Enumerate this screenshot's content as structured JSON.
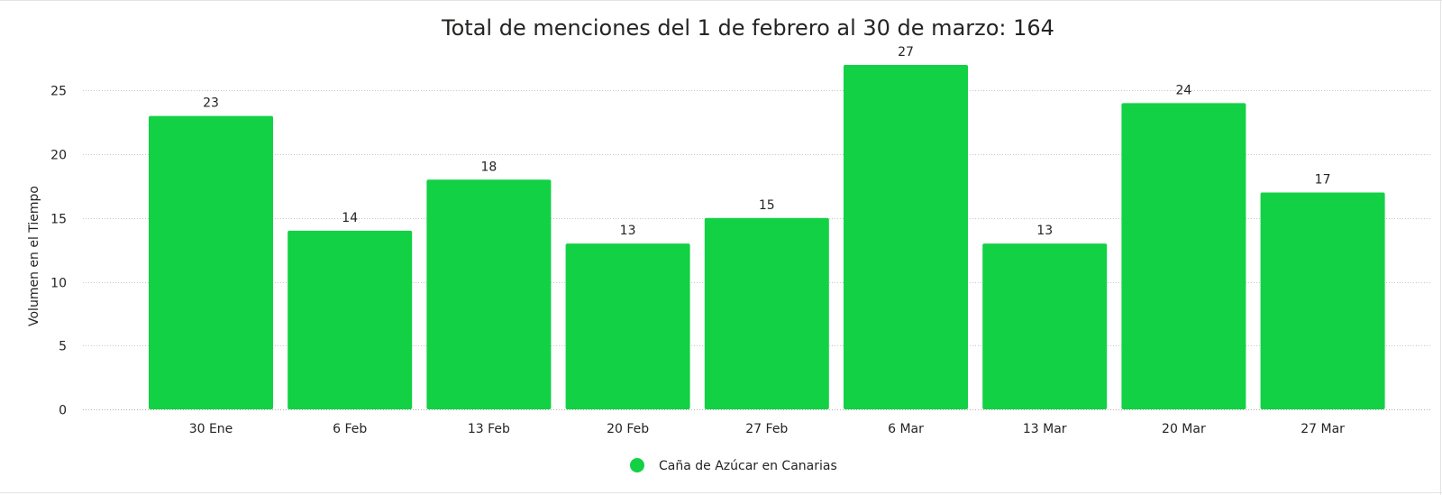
{
  "chart_data": {
    "type": "bar",
    "title": "Total de menciones del 1 de febrero al 30 de marzo: 164",
    "ylabel": "Volumen en el Tiempo",
    "xlabel": "",
    "categories": [
      "30 Ene",
      "6 Feb",
      "13 Feb",
      "20 Feb",
      "27 Feb",
      "6 Mar",
      "13 Mar",
      "20 Mar",
      "27 Mar"
    ],
    "series": [
      {
        "name": "Caña de Azúcar en Canarias",
        "values": [
          23,
          14,
          18,
          13,
          15,
          27,
          13,
          24,
          17
        ],
        "color": "#12d144"
      }
    ],
    "ylim": [
      0,
      27
    ],
    "yticks": [
      0,
      5,
      10,
      15,
      20,
      25
    ],
    "grid": true,
    "legend_position": "bottom-center",
    "data_labels": true
  }
}
